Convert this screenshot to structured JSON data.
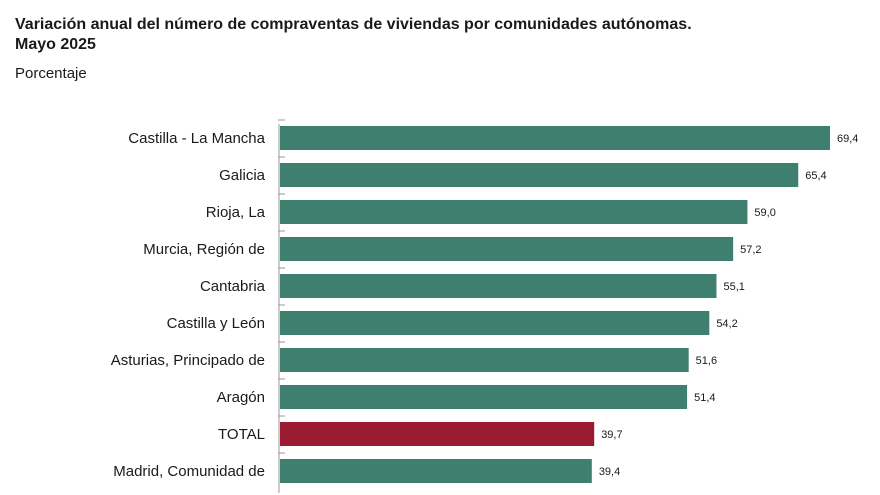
{
  "header": {
    "title_line1": "Variación anual del número de compraventas de viviendas por comunidades autónomas.",
    "title_line2": "Mayo 2025",
    "subtitle": "Porcentaje"
  },
  "chart_data": {
    "type": "bar",
    "orientation": "horizontal",
    "title": "Variación anual del número de compraventas de viviendas por comunidades autónomas. Mayo 2025",
    "subtitle": "Porcentaje",
    "categories": [
      "Castilla - La Mancha",
      "Galicia",
      "Rioja, La",
      "Murcia, Región de",
      "Cantabria",
      "Castilla y León",
      "Asturias, Principado de",
      "Aragón",
      "TOTAL",
      "Madrid, Comunidad de"
    ],
    "values": [
      69.4,
      65.4,
      59.0,
      57.2,
      55.1,
      54.2,
      51.6,
      51.4,
      39.7,
      39.4
    ],
    "value_labels": [
      "69,4",
      "65,4",
      "59,0",
      "57,2",
      "55,1",
      "54,2",
      "51,6",
      "51,4",
      "39,7",
      "39,4"
    ],
    "highlight_category": "TOTAL",
    "colors": {
      "bar": "#3f7f6f",
      "highlight": "#9b1b30",
      "axis": "#9a9a9a"
    },
    "xlim": [
      0,
      69.4
    ],
    "grid": false,
    "legend": "none"
  }
}
